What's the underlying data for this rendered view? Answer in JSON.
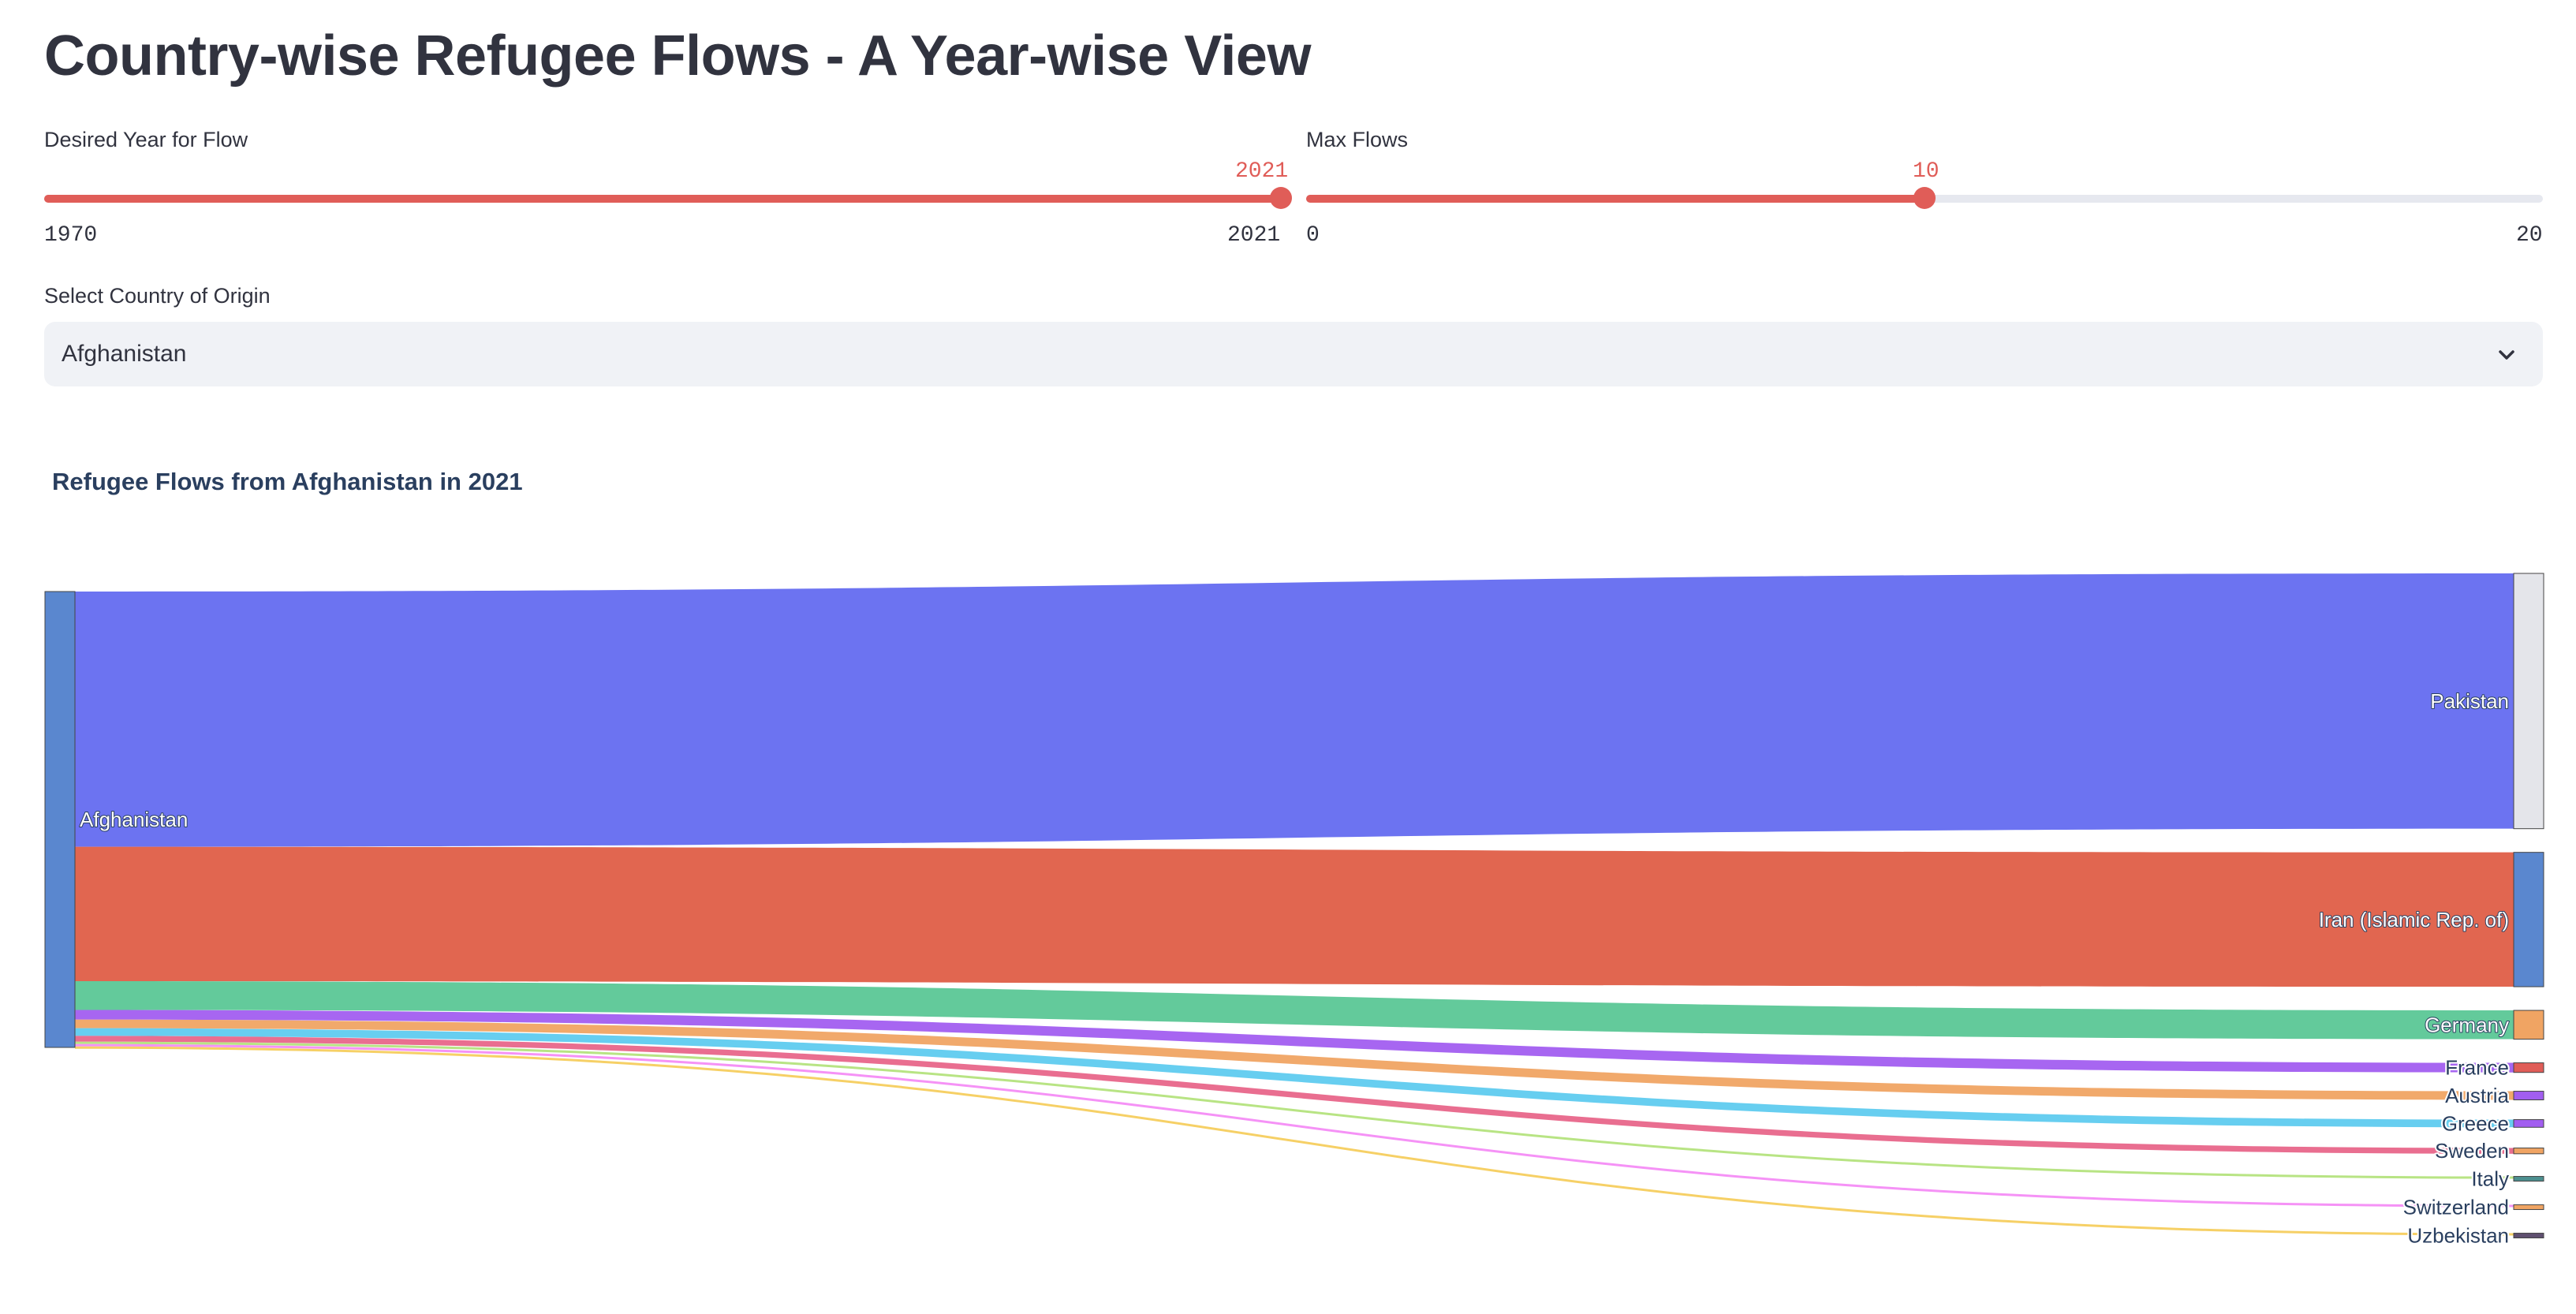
{
  "page": {
    "title": "Country-wise Refugee Flows - A Year-wise View"
  },
  "year_slider": {
    "label": "Desired Year for Flow",
    "min": 1970,
    "max": 2021,
    "value": 2021
  },
  "flows_slider": {
    "label": "Max Flows",
    "min": 0,
    "max": 20,
    "value": 10
  },
  "origin_select": {
    "label": "Select Country of Origin",
    "value": "Afghanistan"
  },
  "chart_data": {
    "type": "sankey",
    "title": "Refugee Flows from Afghanistan in 2021",
    "source": {
      "name": "Afghanistan",
      "color": "#5a87cf"
    },
    "targets": [
      {
        "name": "Pakistan",
        "value": 1330,
        "link_color": "#646cf0",
        "node_color": "#e4e5ea"
      },
      {
        "name": "Iran (Islamic Rep. of)",
        "value": 700,
        "link_color": "#df5e47",
        "node_color": "#5a87cf"
      },
      {
        "name": "Germany",
        "value": 150,
        "link_color": "#5bc796",
        "node_color": "#f0a463"
      },
      {
        "name": "France",
        "value": 50,
        "link_color": "#a25ef0",
        "node_color": "#e05d58"
      },
      {
        "name": "Austria",
        "value": 45,
        "link_color": "#f0a463",
        "node_color": "#a25ef0"
      },
      {
        "name": "Greece",
        "value": 40,
        "link_color": "#5fcbef",
        "node_color": "#a25ef0"
      },
      {
        "name": "Sweden",
        "value": 30,
        "link_color": "#e8668a",
        "node_color": "#f0a463"
      },
      {
        "name": "Italy",
        "value": 12,
        "link_color": "#b4e37d",
        "node_color": "#4c8f8f"
      },
      {
        "name": "Switzerland",
        "value": 10,
        "link_color": "#f48cf5",
        "node_color": "#f0a463"
      },
      {
        "name": "Uzbekistan",
        "value": 8,
        "link_color": "#f5ce5e",
        "node_color": "#5f5070"
      }
    ]
  }
}
